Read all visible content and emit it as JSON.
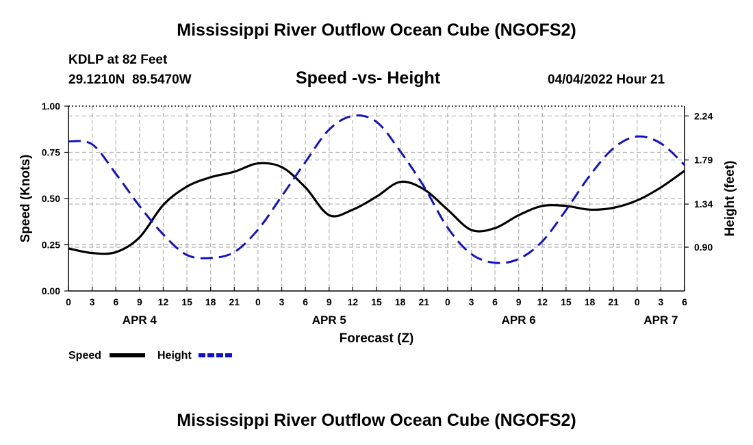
{
  "header": {
    "title": "Mississippi River Outflow Ocean Cube (NGOFS2)",
    "station": "KDLP at 82 Feet",
    "coords": "29.1210N  89.5470W",
    "subtitle": "Speed -vs- Height",
    "datetime": "04/04/2022 Hour 21"
  },
  "footer": {
    "title": "Mississippi River Outflow Ocean Cube (NGOFS2)"
  },
  "chart_data": {
    "type": "line",
    "title": "Speed -vs- Height",
    "xlabel": "Forecast (Z)",
    "ylabel_left": "Speed (Knots)",
    "ylabel_right": "Height (feet)",
    "x_unit": "hours from 04/04 00Z (Apr 4 00Z to Apr 7 06Z)",
    "xlim": [
      -21,
      57
    ],
    "ylim_left": [
      0,
      1
    ],
    "ylim_right": [
      0.453,
      2.34
    ],
    "x_ticks": [
      -21,
      -18,
      -15,
      -12,
      -9,
      -6,
      -3,
      0,
      3,
      6,
      9,
      12,
      15,
      18,
      21,
      24,
      27,
      30,
      33,
      36,
      39,
      42,
      45,
      48,
      51,
      54,
      57
    ],
    "x_tick_labels": [
      "0",
      "3",
      "6",
      "9",
      "12",
      "15",
      "18",
      "21",
      "0",
      "3",
      "6",
      "9",
      "12",
      "15",
      "18",
      "21",
      "0",
      "3",
      "6",
      "9",
      "12",
      "15",
      "18",
      "21",
      "0",
      "3",
      "6"
    ],
    "day_labels": [
      {
        "label": "APR 4",
        "x": -12
      },
      {
        "label": "APR 5",
        "x": 12
      },
      {
        "label": "APR 6",
        "x": 36
      },
      {
        "label": "APR 7",
        "x": 54
      }
    ],
    "y_left_ticks": [
      0.0,
      0.25,
      0.5,
      0.75,
      1.0
    ],
    "y_left_tick_labels": [
      "0.00",
      "0.25",
      "0.50",
      "0.75",
      "1.00"
    ],
    "y_right_ticks": [
      0.9,
      1.34,
      1.79,
      2.24
    ],
    "y_right_tick_labels": [
      "0.90",
      "1.34",
      "1.79",
      "2.24"
    ],
    "grid": true,
    "legend": [
      {
        "label": "Speed",
        "color": "#000000",
        "style": "solid"
      },
      {
        "label": "Height",
        "color": "#1010cc",
        "style": "dashed"
      }
    ],
    "series": [
      {
        "name": "Speed",
        "axis": "left",
        "color": "#000000",
        "x": [
          -21,
          -18,
          -15,
          -12,
          -9,
          -6,
          -3,
          0,
          3,
          6,
          9,
          12,
          15,
          18,
          21,
          24,
          27,
          30,
          33,
          36,
          39,
          42,
          45,
          48,
          51,
          54,
          57
        ],
        "y": [
          0.23,
          0.205,
          0.21,
          0.29,
          0.465,
          0.565,
          0.615,
          0.645,
          0.69,
          0.67,
          0.56,
          0.41,
          0.44,
          0.51,
          0.59,
          0.55,
          0.44,
          0.33,
          0.34,
          0.41,
          0.46,
          0.46,
          0.44,
          0.45,
          0.49,
          0.56,
          0.65
        ]
      },
      {
        "name": "Height",
        "axis": "right",
        "color": "#1010cc",
        "x": [
          -21,
          -18,
          -15,
          -12,
          -9,
          -6,
          -3,
          0,
          3,
          6,
          9,
          12,
          15,
          18,
          21,
          24,
          27,
          30,
          33,
          36,
          39,
          42,
          45,
          48,
          51,
          54,
          57
        ],
        "y": [
          1.98,
          1.95,
          1.65,
          1.32,
          1.03,
          0.82,
          0.79,
          0.85,
          1.08,
          1.42,
          1.77,
          2.1,
          2.24,
          2.18,
          1.88,
          1.52,
          1.1,
          0.83,
          0.74,
          0.78,
          0.96,
          1.28,
          1.63,
          1.91,
          2.03,
          1.96,
          1.74
        ]
      }
    ]
  }
}
